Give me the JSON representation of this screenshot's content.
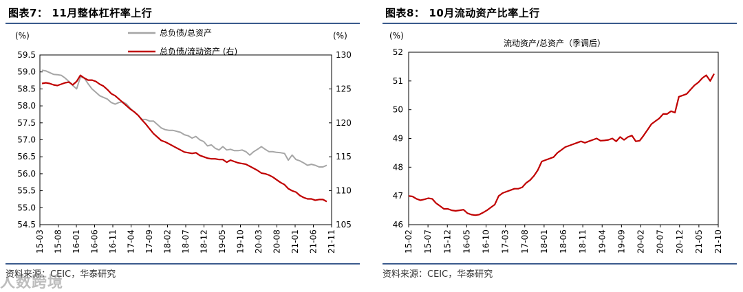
{
  "panels": [
    {
      "label": "图表7：",
      "title": "11月整体杠杆率上行",
      "source": "资料来源：CEIC，华泰研究",
      "watermark": "人数跨境"
    },
    {
      "label": "图表8：",
      "title": "10月流动资产比率上行",
      "source": "资料来源：CEIC，华泰研究"
    }
  ],
  "chart_data": [
    {
      "type": "line",
      "title": "11月整体杠杆率上行",
      "y_left_unit": "(%)",
      "y_right_unit": "(%)",
      "y_left_lim": [
        54.5,
        59.5
      ],
      "y_right_lim": [
        105,
        130
      ],
      "y_left_ticks": [
        "54.5",
        "55.0",
        "55.5",
        "56.0",
        "56.5",
        "57.0",
        "57.5",
        "58.0",
        "58.5",
        "59.0",
        "59.5"
      ],
      "y_right_ticks": [
        "105",
        "110",
        "115",
        "120",
        "125",
        "130"
      ],
      "x_ticks": [
        "15-03",
        "15-08",
        "16-01",
        "16-06",
        "16-11",
        "17-04",
        "17-09",
        "18-02",
        "18-07",
        "18-12",
        "19-05",
        "19-10",
        "20-03",
        "20-08",
        "21-01",
        "21-06",
        "21-11"
      ],
      "series": [
        {
          "name": "总负债/总资产",
          "axis": "left",
          "color": "#a6a6a6",
          "values": [
            59.05,
            59.03,
            58.98,
            58.93,
            58.92,
            58.9,
            58.82,
            58.72,
            58.6,
            58.5,
            58.85,
            58.82,
            58.65,
            58.5,
            58.4,
            58.3,
            58.25,
            58.2,
            58.1,
            58.05,
            58.1,
            58.12,
            58.05,
            57.92,
            57.82,
            57.72,
            57.6,
            57.6,
            57.55,
            57.55,
            57.45,
            57.35,
            57.3,
            57.28,
            57.28,
            57.25,
            57.22,
            57.15,
            57.12,
            57.05,
            57.1,
            57.0,
            56.95,
            56.82,
            56.85,
            56.75,
            56.7,
            56.8,
            56.7,
            56.72,
            56.68,
            56.68,
            56.7,
            56.65,
            56.55,
            56.65,
            56.72,
            56.8,
            56.72,
            56.65,
            56.65,
            56.63,
            56.62,
            56.6,
            56.4,
            56.55,
            56.42,
            56.38,
            56.32,
            56.25,
            56.28,
            56.25,
            56.2,
            56.2,
            56.25
          ]
        },
        {
          "name": "总负债/流动资产 (右)",
          "axis": "right",
          "color": "#c00000",
          "values": [
            125.8,
            125.9,
            125.8,
            125.6,
            125.5,
            125.7,
            125.9,
            126.0,
            125.6,
            126.1,
            127.0,
            126.6,
            126.3,
            126.3,
            126.1,
            125.7,
            125.4,
            124.9,
            124.3,
            124.0,
            123.5,
            123.0,
            122.5,
            122.0,
            121.6,
            121.1,
            120.4,
            119.8,
            119.1,
            118.4,
            117.9,
            117.4,
            117.2,
            116.9,
            116.6,
            116.3,
            116.0,
            115.7,
            115.6,
            115.5,
            115.6,
            115.2,
            115.0,
            114.8,
            114.7,
            114.7,
            114.6,
            114.6,
            114.2,
            114.5,
            114.3,
            114.1,
            114.0,
            113.9,
            113.6,
            113.3,
            113.0,
            112.6,
            112.5,
            112.3,
            112.0,
            111.6,
            111.2,
            110.9,
            110.3,
            110.0,
            109.8,
            109.3,
            109.0,
            108.8,
            108.8,
            108.6,
            108.7,
            108.7,
            108.4
          ]
        }
      ]
    },
    {
      "type": "line",
      "title": "10月流动资产比率上行",
      "y_unit": "(%)",
      "ylim": [
        46,
        52
      ],
      "y_ticks": [
        "46",
        "47",
        "48",
        "49",
        "50",
        "51",
        "52"
      ],
      "x_ticks": [
        "15-02",
        "15-07",
        "15-12",
        "16-05",
        "16-10",
        "17-03",
        "17-08",
        "18-01",
        "18-06",
        "18-11",
        "19-04",
        "19-09",
        "20-02",
        "20-07",
        "20-12",
        "21-05",
        "21-10"
      ],
      "series": [
        {
          "name": "流动资产/总资产（季调后）",
          "color": "#c00000",
          "values": [
            47.0,
            46.98,
            46.9,
            46.85,
            46.88,
            46.92,
            46.9,
            46.75,
            46.65,
            46.55,
            46.55,
            46.5,
            46.48,
            46.5,
            46.52,
            46.4,
            46.35,
            46.33,
            46.35,
            46.42,
            46.5,
            46.6,
            46.7,
            47.0,
            47.1,
            47.15,
            47.2,
            47.25,
            47.25,
            47.3,
            47.45,
            47.55,
            47.7,
            47.9,
            48.2,
            48.25,
            48.3,
            48.35,
            48.5,
            48.6,
            48.7,
            48.75,
            48.8,
            48.85,
            48.9,
            48.85,
            48.9,
            48.95,
            49.0,
            48.92,
            48.93,
            48.95,
            49.0,
            48.9,
            49.05,
            48.95,
            49.05,
            49.1,
            48.9,
            48.92,
            49.1,
            49.3,
            49.5,
            49.6,
            49.7,
            49.85,
            49.85,
            49.95,
            49.9,
            50.45,
            50.5,
            50.55,
            50.7,
            50.85,
            50.95,
            51.1,
            51.2,
            51.0,
            51.25
          ]
        }
      ]
    }
  ]
}
